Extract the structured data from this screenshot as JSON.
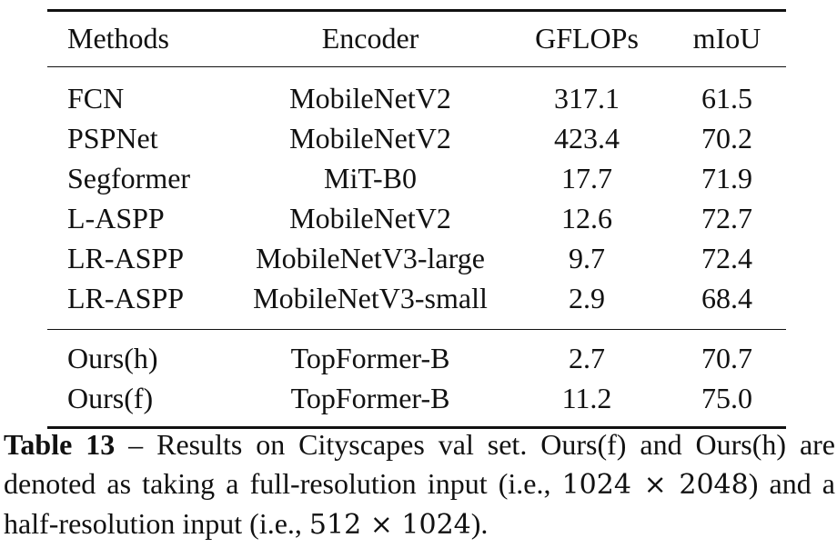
{
  "table": {
    "headers": [
      "Methods",
      "Encoder",
      "GFLOPs",
      "mIoU"
    ],
    "rows": [
      {
        "method": "FCN",
        "encoder": "MobileNetV2",
        "gflops": "317.1",
        "miou": "61.5"
      },
      {
        "method": "PSPNet",
        "encoder": "MobileNetV2",
        "gflops": "423.4",
        "miou": "70.2"
      },
      {
        "method": "Segformer",
        "encoder": "MiT-B0",
        "gflops": "17.7",
        "miou": "71.9"
      },
      {
        "method": "L-ASPP",
        "encoder": "MobileNetV2",
        "gflops": "12.6",
        "miou": "72.7"
      },
      {
        "method": "LR-ASPP",
        "encoder": "MobileNetV3-large",
        "gflops": "9.7",
        "miou": "72.4"
      },
      {
        "method": "LR-ASPP",
        "encoder": "MobileNetV3-small",
        "gflops": "2.9",
        "miou": "68.4"
      }
    ],
    "ours_rows": [
      {
        "method": "Ours(h)",
        "encoder": "TopFormer-B",
        "gflops": "2.7",
        "miou": "70.7"
      },
      {
        "method": "Ours(f)",
        "encoder": "TopFormer-B",
        "gflops": "11.2",
        "miou": "75.0"
      }
    ]
  },
  "caption": {
    "label": "Table 13",
    "dash": " – ",
    "text_1": "Results on Cityscapes val set. Ours(f) and Ours(h) are denoted as taking a full-resolution input (i.e., ",
    "math_1": "1024 × 2048",
    "text_2": ") and a half-resolution input (i.e., ",
    "math_2": "512 × 1024",
    "text_3": ")."
  }
}
